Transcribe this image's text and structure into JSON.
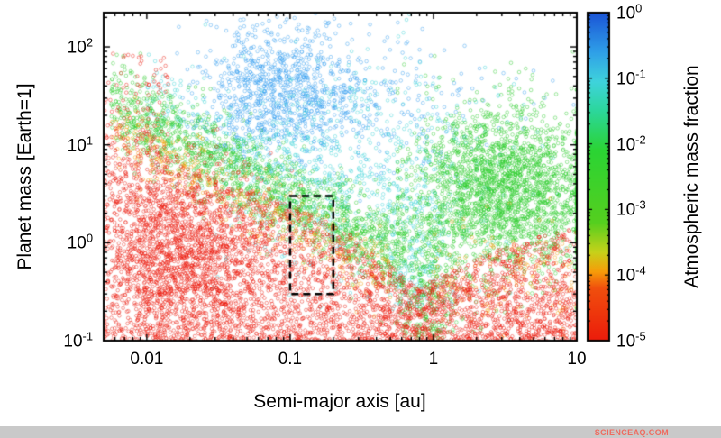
{
  "footer": {
    "watermark": "SCIENCEAQ.COM",
    "bar_color": "#c9c9c9",
    "text_color": "#ef6a5e"
  },
  "chart_data": {
    "type": "scatter",
    "title": "",
    "xlabel": "Semi-major axis [au]",
    "ylabel": "Planet mass [Earth=1]",
    "x_scale": "log",
    "y_scale": "log",
    "xlim": [
      0.005,
      10
    ],
    "ylim": [
      0.1,
      224
    ],
    "grid": false,
    "x_ticks": [
      {
        "v": 0.01,
        "label": "0.01"
      },
      {
        "v": 0.1,
        "label": "0.1"
      },
      {
        "v": 1,
        "label": "1"
      },
      {
        "v": 10,
        "label": "10"
      }
    ],
    "y_ticks": [
      {
        "exp": "-1"
      },
      {
        "exp": "0"
      },
      {
        "exp": "1"
      },
      {
        "exp": "2"
      }
    ],
    "colorbar": {
      "title": "Atmospheric mass fraction",
      "scale": "log",
      "tick_exps": [
        "0",
        "-1",
        "-2",
        "-3",
        "-4",
        "-5"
      ],
      "range_exp": [
        -5,
        0
      ],
      "stops": [
        [
          0.0,
          "#ec1c0b"
        ],
        [
          0.16,
          "#f04f0e"
        ],
        [
          0.21,
          "#f79c09"
        ],
        [
          0.27,
          "#c6d21a"
        ],
        [
          0.36,
          "#55cf1f"
        ],
        [
          0.58,
          "#2bd434"
        ],
        [
          0.7,
          "#2cd79b"
        ],
        [
          0.79,
          "#3fd3dc"
        ],
        [
          0.88,
          "#2f9fe8"
        ],
        [
          1.0,
          "#1b54d6"
        ]
      ]
    },
    "selection_box": {
      "x": [
        0.1,
        0.2
      ],
      "y": [
        0.3,
        3.0
      ],
      "style": "dashed"
    },
    "point_style": {
      "radius": 1.8,
      "alpha": 0.5,
      "line_width": 0.9,
      "shape": "open-circle"
    },
    "seed": 42,
    "clusters": [
      {
        "name": "blue-core",
        "atm_fraction": "1e0",
        "color": "#2e9bf0",
        "n": 950,
        "x": {
          "type": "normal",
          "mean": -1.08,
          "sd": 0.28
        },
        "y": {
          "type": "normal",
          "mean": 1.55,
          "sd": 0.33
        }
      },
      {
        "name": "blue-right",
        "atm_fraction": "1e0",
        "color": "#2e9bf0",
        "n": 230,
        "x": {
          "type": "normal",
          "mean": -0.35,
          "sd": 0.45
        },
        "y": {
          "type": "normal",
          "mean": 1.35,
          "sd": 0.4
        }
      },
      {
        "name": "cyan-halo",
        "atm_fraction": "1e-1",
        "color": "#38d2d8",
        "n": 700,
        "x": {
          "type": "normal",
          "mean": -0.55,
          "sd": 0.5
        },
        "y": {
          "type": "normal",
          "mean": 0.75,
          "sd": 0.55
        }
      },
      {
        "name": "cyan-band",
        "atm_fraction": "1e-1",
        "color": "#38d2d8",
        "n": 260,
        "x": {
          "type": "uniform",
          "min": -2.0,
          "max": -0.6
        },
        "band": {
          "slope": -0.77,
          "x0": -0.5,
          "y0": 0.35,
          "sd": 0.2
        }
      },
      {
        "name": "cyan-plume",
        "atm_fraction": "1e-1",
        "color": "#38d2d8",
        "n": 220,
        "x": {
          "type": "normal",
          "mean": -0.12,
          "sd": 0.13
        },
        "y": {
          "type": "uniform",
          "min": -0.7,
          "max": 0.6
        }
      },
      {
        "name": "green-band",
        "atm_fraction": "1e-2",
        "color": "#27cd27",
        "n": 1600,
        "x": {
          "type": "uniform",
          "min": -2.25,
          "max": -0.2
        },
        "band": {
          "slope": -0.77,
          "x0": -0.5,
          "y0": 0.08,
          "sd": 0.22
        }
      },
      {
        "name": "green-right",
        "atm_fraction": "1e-2",
        "color": "#27cd27",
        "n": 2400,
        "x": {
          "type": "normal",
          "mean": 0.5,
          "sd": 0.33,
          "clip": [
            -0.25,
            1.0
          ]
        },
        "y": {
          "type": "normal",
          "mean": 0.55,
          "sd": 0.42
        }
      },
      {
        "name": "green-plume",
        "atm_fraction": "1e-2",
        "color": "#27cd27",
        "n": 350,
        "x": {
          "type": "normal",
          "mean": -0.05,
          "sd": 0.12
        },
        "y": {
          "type": "uniform",
          "min": -1.0,
          "max": 0.3
        }
      },
      {
        "name": "orange-band",
        "atm_fraction": "1e-4",
        "color": "#f59b00",
        "n": 420,
        "x": {
          "type": "uniform",
          "min": -2.25,
          "max": -0.3
        },
        "band": {
          "slope": -0.77,
          "x0": -0.5,
          "y0": -0.22,
          "sd": 0.18
        }
      },
      {
        "name": "orange-right",
        "atm_fraction": "1e-4",
        "color": "#f59b00",
        "n": 160,
        "x": {
          "type": "uniform",
          "min": 0.0,
          "max": 1.0
        },
        "y": {
          "type": "normal",
          "mean": -0.35,
          "sd": 0.3
        }
      },
      {
        "name": "red-sea",
        "atm_fraction": "1e-5",
        "color": "#ea1506",
        "n": 4200,
        "x": {
          "type": "uniform",
          "min": -2.32,
          "max": 1.0
        },
        "y": {
          "type": "envelope",
          "base": -1.08,
          "power": 1.6,
          "points": [
            [
              -2.32,
              1.3
            ],
            [
              -2.0,
              1.05
            ],
            [
              -1.5,
              0.62
            ],
            [
              -1.0,
              0.42
            ],
            [
              -0.5,
              0.02
            ],
            [
              -0.1,
              -0.45
            ],
            [
              0.3,
              -0.15
            ],
            [
              0.7,
              0.05
            ],
            [
              1.0,
              0.15
            ]
          ]
        }
      },
      {
        "name": "red-blob",
        "atm_fraction": "1e-5",
        "color": "#ea1506",
        "n": 1500,
        "x": {
          "type": "normal",
          "mean": -1.75,
          "sd": 0.33
        },
        "y": {
          "type": "normal",
          "mean": -0.15,
          "sd": 0.45
        }
      },
      {
        "name": "red-left-high",
        "atm_fraction": "1e-5",
        "color": "#ea1506",
        "n": 140,
        "x": {
          "type": "uniform",
          "min": -2.32,
          "max": -1.85
        },
        "y": {
          "type": "uniform",
          "min": 0.3,
          "max": 1.95
        }
      }
    ]
  }
}
